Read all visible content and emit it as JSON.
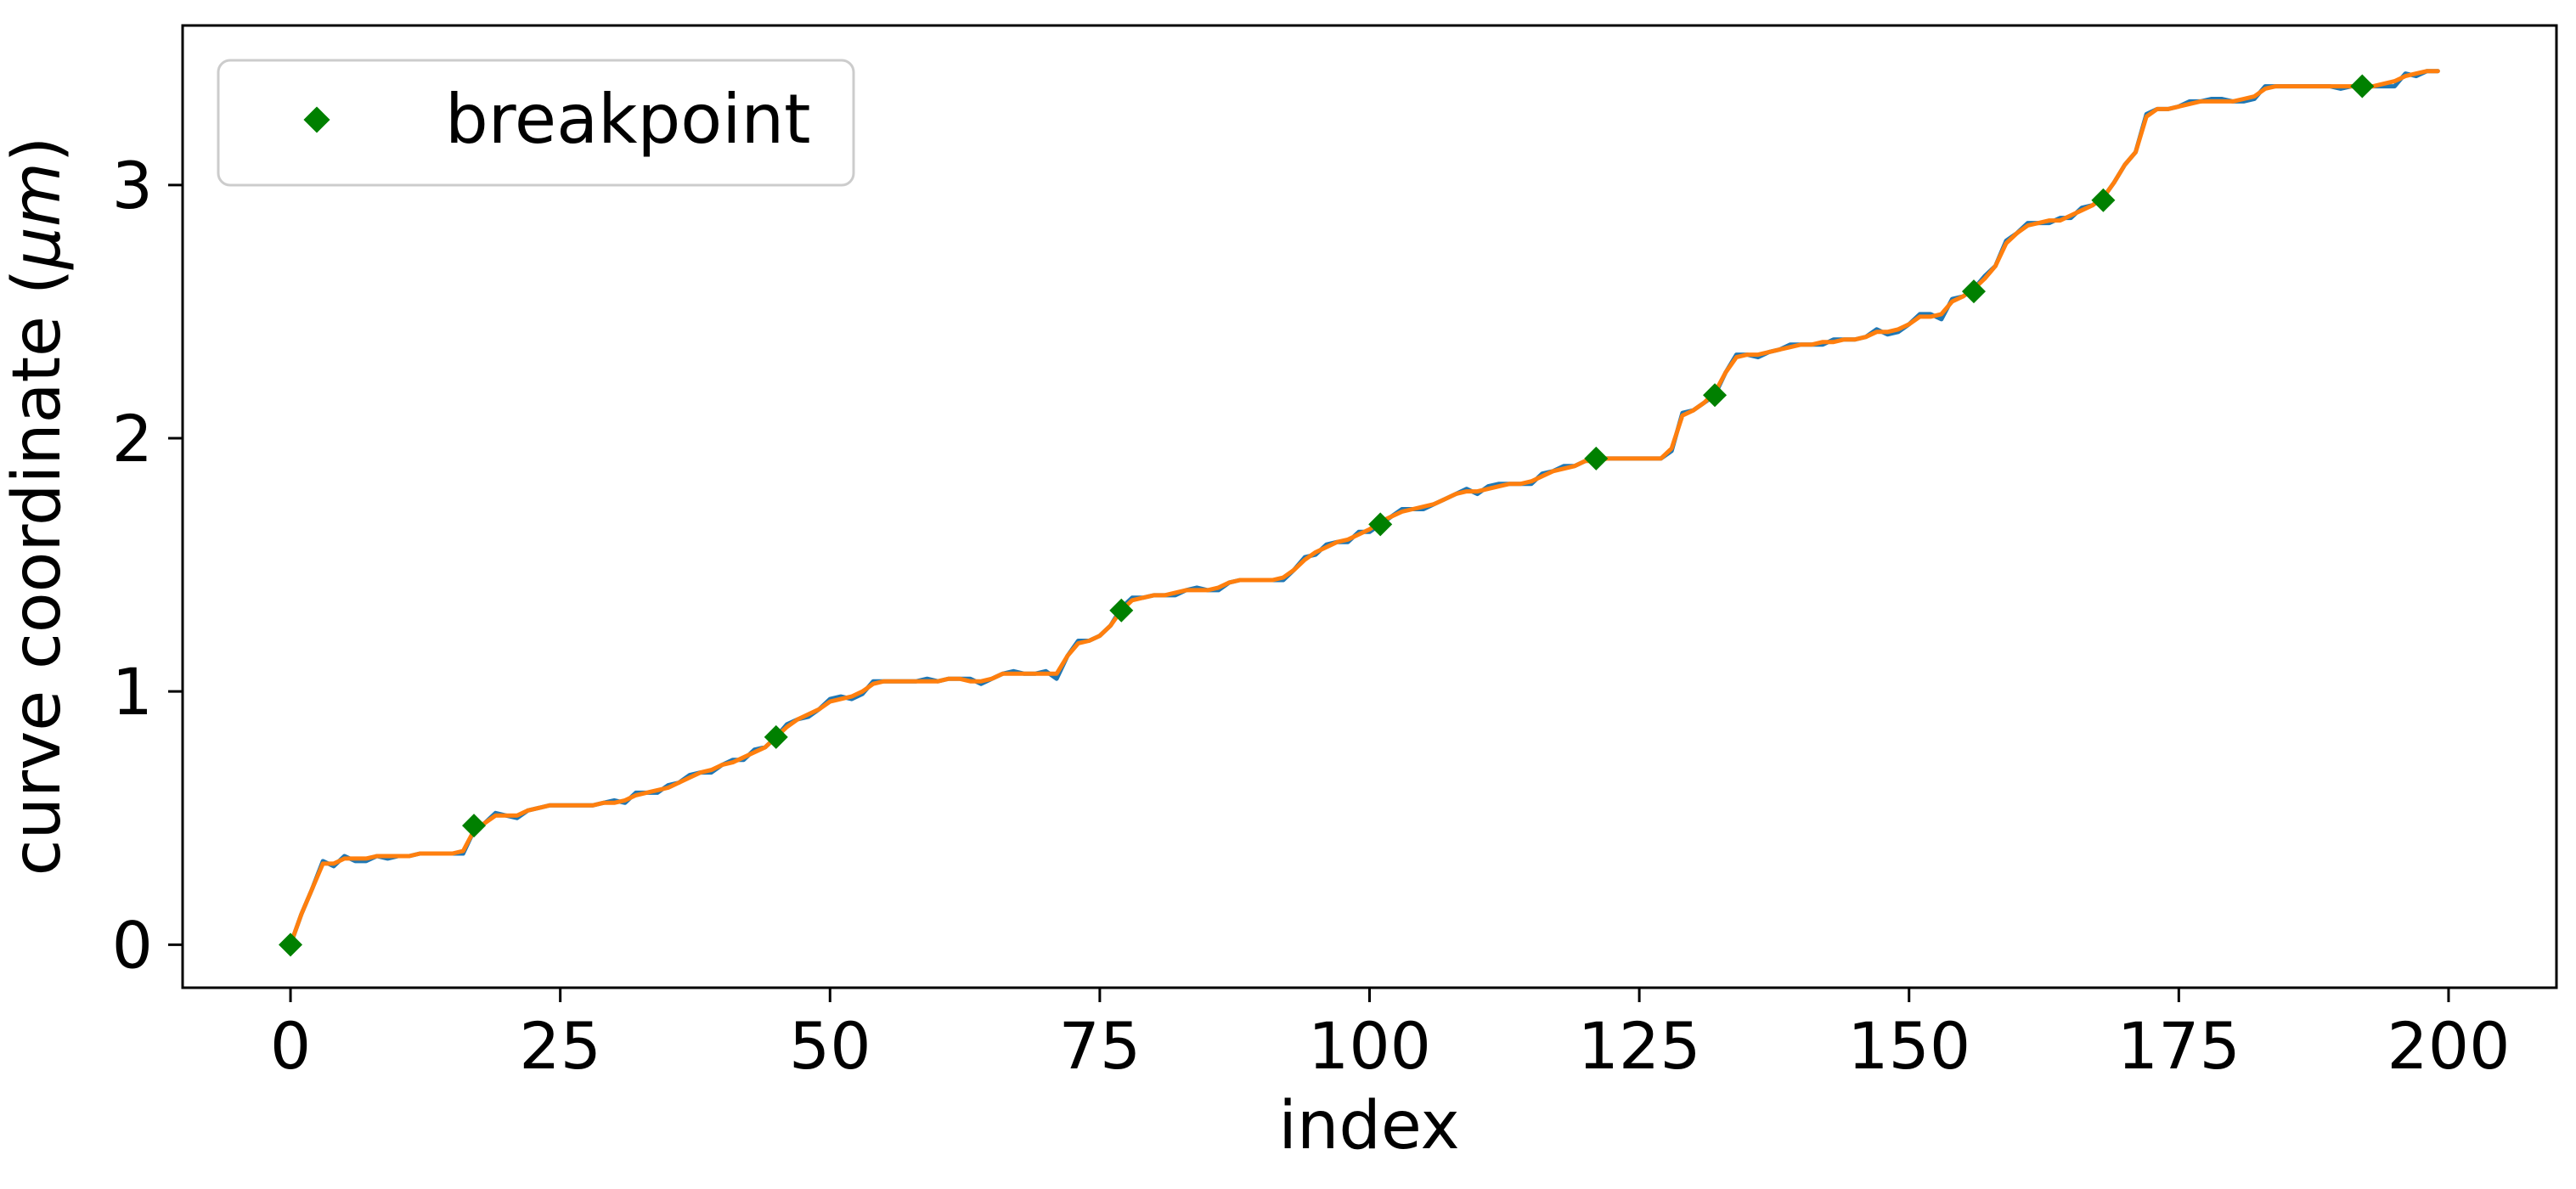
{
  "chart_data": {
    "type": "line",
    "title": "",
    "xlabel": "index",
    "ylabel_prefix": "curve coordinate (",
    "ylabel_unit": "μm",
    "ylabel_suffix": ")",
    "xlim": [
      -10,
      210
    ],
    "ylim": [
      -0.17,
      3.63
    ],
    "xticks": [
      0,
      25,
      50,
      75,
      100,
      125,
      150,
      175,
      200
    ],
    "yticks": [
      0,
      1,
      2,
      3
    ],
    "grid": false,
    "legend_position": "top-left",
    "series": [
      {
        "color": "#1f77b4",
        "x": [
          0,
          1,
          2,
          3,
          4,
          5,
          6,
          7,
          8,
          9,
          10,
          11,
          12,
          13,
          14,
          15,
          16,
          17,
          18,
          19,
          20,
          21,
          22,
          23,
          24,
          25,
          26,
          27,
          28,
          29,
          30,
          31,
          32,
          33,
          34,
          35,
          36,
          37,
          38,
          39,
          40,
          41,
          42,
          43,
          44,
          45,
          46,
          47,
          48,
          49,
          50,
          51,
          52,
          53,
          54,
          55,
          56,
          57,
          58,
          59,
          60,
          61,
          62,
          63,
          64,
          65,
          66,
          67,
          68,
          69,
          70,
          71,
          72,
          73,
          74,
          75,
          76,
          77,
          78,
          79,
          80,
          81,
          82,
          83,
          84,
          85,
          86,
          87,
          88,
          89,
          90,
          91,
          92,
          93,
          94,
          95,
          96,
          97,
          98,
          99,
          100,
          101,
          102,
          103,
          104,
          105,
          106,
          107,
          108,
          109,
          110,
          111,
          112,
          113,
          114,
          115,
          116,
          117,
          118,
          119,
          120,
          121,
          122,
          123,
          124,
          125,
          126,
          127,
          128,
          129,
          130,
          131,
          132,
          133,
          134,
          135,
          136,
          137,
          138,
          139,
          140,
          141,
          142,
          143,
          144,
          145,
          146,
          147,
          148,
          149,
          150,
          151,
          152,
          153,
          154,
          155,
          156,
          157,
          158,
          159,
          160,
          161,
          162,
          163,
          164,
          165,
          166,
          167,
          168,
          169,
          170,
          171,
          172,
          173,
          174,
          175,
          176,
          177,
          178,
          179,
          180,
          181,
          182,
          183,
          184,
          185,
          186,
          187,
          188,
          189,
          190,
          191,
          192,
          193,
          194,
          195,
          196,
          197,
          198,
          199
        ],
        "y": [
          0.0,
          0.12,
          0.22,
          0.33,
          0.31,
          0.35,
          0.33,
          0.33,
          0.35,
          0.34,
          0.35,
          0.35,
          0.36,
          0.36,
          0.36,
          0.36,
          0.36,
          0.45,
          0.48,
          0.52,
          0.51,
          0.5,
          0.53,
          0.54,
          0.55,
          0.55,
          0.55,
          0.55,
          0.55,
          0.56,
          0.57,
          0.56,
          0.6,
          0.6,
          0.6,
          0.63,
          0.64,
          0.67,
          0.68,
          0.68,
          0.71,
          0.73,
          0.73,
          0.77,
          0.78,
          0.82,
          0.87,
          0.89,
          0.9,
          0.93,
          0.97,
          0.98,
          0.97,
          0.99,
          1.04,
          1.04,
          1.04,
          1.04,
          1.04,
          1.05,
          1.04,
          1.05,
          1.05,
          1.05,
          1.03,
          1.05,
          1.07,
          1.08,
          1.07,
          1.07,
          1.08,
          1.05,
          1.14,
          1.2,
          1.2,
          1.22,
          1.26,
          1.33,
          1.37,
          1.37,
          1.38,
          1.38,
          1.38,
          1.4,
          1.41,
          1.4,
          1.4,
          1.43,
          1.44,
          1.44,
          1.44,
          1.44,
          1.44,
          1.48,
          1.53,
          1.54,
          1.58,
          1.59,
          1.59,
          1.63,
          1.63,
          1.66,
          1.69,
          1.72,
          1.72,
          1.72,
          1.74,
          1.76,
          1.78,
          1.8,
          1.78,
          1.81,
          1.82,
          1.82,
          1.82,
          1.82,
          1.86,
          1.87,
          1.89,
          1.89,
          1.91,
          1.92,
          1.92,
          1.92,
          1.92,
          1.92,
          1.92,
          1.92,
          1.95,
          2.1,
          2.11,
          2.14,
          2.17,
          2.26,
          2.33,
          2.33,
          2.32,
          2.34,
          2.35,
          2.37,
          2.37,
          2.37,
          2.37,
          2.39,
          2.39,
          2.39,
          2.4,
          2.43,
          2.41,
          2.42,
          2.45,
          2.49,
          2.49,
          2.47,
          2.55,
          2.56,
          2.59,
          2.64,
          2.68,
          2.78,
          2.81,
          2.85,
          2.85,
          2.85,
          2.87,
          2.87,
          2.91,
          2.92,
          2.95,
          3.01,
          3.08,
          3.13,
          3.28,
          3.3,
          3.3,
          3.31,
          3.33,
          3.33,
          3.34,
          3.34,
          3.33,
          3.33,
          3.34,
          3.39,
          3.39,
          3.39,
          3.39,
          3.39,
          3.39,
          3.39,
          3.38,
          3.39,
          3.39,
          3.39,
          3.39,
          3.39,
          3.44,
          3.43,
          3.45,
          3.45
        ]
      },
      {
        "color": "#ff7f0e",
        "x": [
          0,
          1,
          2,
          3,
          4,
          5,
          6,
          7,
          8,
          9,
          10,
          11,
          12,
          13,
          14,
          15,
          16,
          17,
          18,
          19,
          20,
          21,
          22,
          23,
          24,
          25,
          26,
          27,
          28,
          29,
          30,
          31,
          32,
          33,
          34,
          35,
          36,
          37,
          38,
          39,
          40,
          41,
          42,
          43,
          44,
          45,
          46,
          47,
          48,
          49,
          50,
          51,
          52,
          53,
          54,
          55,
          56,
          57,
          58,
          59,
          60,
          61,
          62,
          63,
          64,
          65,
          66,
          67,
          68,
          69,
          70,
          71,
          72,
          73,
          74,
          75,
          76,
          77,
          78,
          79,
          80,
          81,
          82,
          83,
          84,
          85,
          86,
          87,
          88,
          89,
          90,
          91,
          92,
          93,
          94,
          95,
          96,
          97,
          98,
          99,
          100,
          101,
          102,
          103,
          104,
          105,
          106,
          107,
          108,
          109,
          110,
          111,
          112,
          113,
          114,
          115,
          116,
          117,
          118,
          119,
          120,
          121,
          122,
          123,
          124,
          125,
          126,
          127,
          128,
          129,
          130,
          131,
          132,
          133,
          134,
          135,
          136,
          137,
          138,
          139,
          140,
          141,
          142,
          143,
          144,
          145,
          146,
          147,
          148,
          149,
          150,
          151,
          152,
          153,
          154,
          155,
          156,
          157,
          158,
          159,
          160,
          161,
          162,
          163,
          164,
          165,
          166,
          167,
          168,
          169,
          170,
          171,
          172,
          173,
          174,
          175,
          176,
          177,
          178,
          179,
          180,
          181,
          182,
          183,
          184,
          185,
          186,
          187,
          188,
          189,
          190,
          191,
          192,
          193,
          194,
          195,
          196,
          197,
          198,
          199
        ],
        "y": [
          0.0,
          0.12,
          0.22,
          0.32,
          0.32,
          0.34,
          0.34,
          0.34,
          0.35,
          0.35,
          0.35,
          0.35,
          0.36,
          0.36,
          0.36,
          0.36,
          0.37,
          0.45,
          0.48,
          0.51,
          0.51,
          0.51,
          0.53,
          0.54,
          0.55,
          0.55,
          0.55,
          0.55,
          0.55,
          0.56,
          0.56,
          0.57,
          0.59,
          0.6,
          0.61,
          0.62,
          0.64,
          0.66,
          0.68,
          0.69,
          0.71,
          0.72,
          0.74,
          0.76,
          0.78,
          0.82,
          0.86,
          0.89,
          0.91,
          0.93,
          0.96,
          0.97,
          0.98,
          1.0,
          1.03,
          1.04,
          1.04,
          1.04,
          1.04,
          1.04,
          1.04,
          1.05,
          1.05,
          1.04,
          1.04,
          1.05,
          1.07,
          1.07,
          1.07,
          1.07,
          1.07,
          1.07,
          1.14,
          1.19,
          1.2,
          1.22,
          1.26,
          1.32,
          1.36,
          1.37,
          1.38,
          1.38,
          1.39,
          1.4,
          1.4,
          1.4,
          1.41,
          1.43,
          1.44,
          1.44,
          1.44,
          1.44,
          1.45,
          1.48,
          1.52,
          1.55,
          1.57,
          1.59,
          1.6,
          1.62,
          1.64,
          1.67,
          1.69,
          1.71,
          1.72,
          1.73,
          1.74,
          1.76,
          1.78,
          1.79,
          1.79,
          1.8,
          1.81,
          1.82,
          1.82,
          1.83,
          1.85,
          1.87,
          1.88,
          1.89,
          1.91,
          1.91,
          1.92,
          1.92,
          1.92,
          1.92,
          1.92,
          1.92,
          1.96,
          2.09,
          2.11,
          2.14,
          2.18,
          2.26,
          2.32,
          2.33,
          2.33,
          2.34,
          2.35,
          2.36,
          2.37,
          2.37,
          2.38,
          2.38,
          2.39,
          2.39,
          2.4,
          2.42,
          2.42,
          2.43,
          2.45,
          2.48,
          2.48,
          2.49,
          2.54,
          2.56,
          2.59,
          2.63,
          2.68,
          2.77,
          2.81,
          2.84,
          2.85,
          2.86,
          2.86,
          2.88,
          2.9,
          2.92,
          2.95,
          3.01,
          3.08,
          3.13,
          3.27,
          3.3,
          3.3,
          3.31,
          3.32,
          3.33,
          3.33,
          3.33,
          3.33,
          3.34,
          3.35,
          3.38,
          3.39,
          3.39,
          3.39,
          3.39,
          3.39,
          3.39,
          3.39,
          3.39,
          3.39,
          3.39,
          3.4,
          3.41,
          3.43,
          3.44,
          3.45,
          3.45
        ]
      }
    ],
    "breakpoints": {
      "name": "breakpoint",
      "color": "#008000",
      "x": [
        0,
        17,
        45,
        77,
        101,
        121,
        132,
        156,
        168,
        192
      ],
      "y": [
        0.0,
        0.47,
        0.82,
        1.32,
        1.66,
        1.92,
        2.17,
        2.58,
        2.94,
        3.39
      ]
    }
  }
}
